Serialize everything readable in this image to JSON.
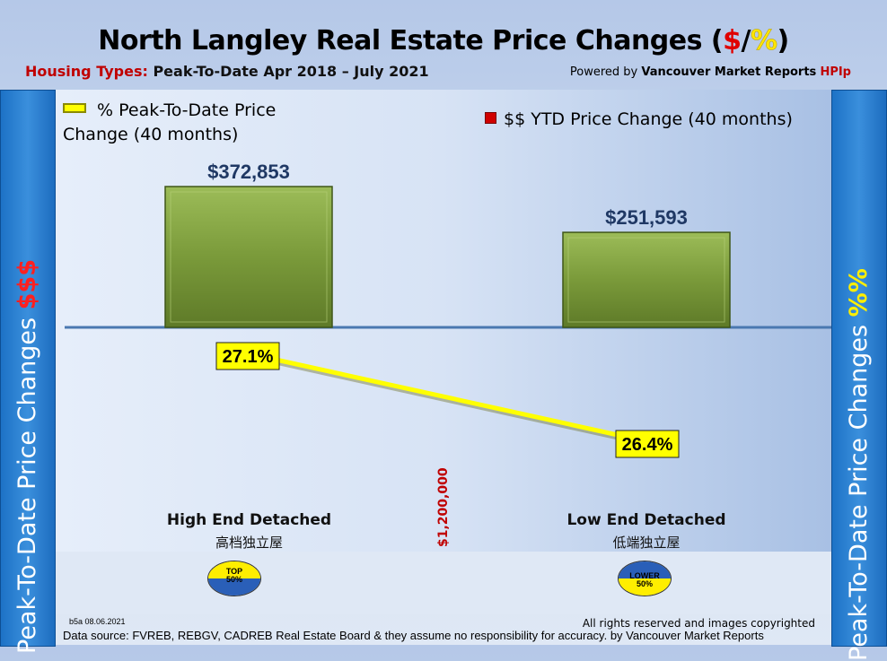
{
  "header": {
    "title_main": "North Langley Real Estate Price Changes (",
    "title_dollar": "$",
    "title_slash": "/",
    "title_pct": "%",
    "title_close": ")",
    "housing_types_label": "Housing Types:",
    "period": "Peak-To-Date Apr 2018 – July 2021",
    "powered_by": "Powered by",
    "vmr": "Vancouver Market Reports",
    "hpi": "HPIp"
  },
  "side": {
    "left_text": "Peak-To-Date Price Changes",
    "left_accent": "$$$",
    "right_text": "Peak-To-Date  Price  Changes",
    "right_accent": "%%"
  },
  "legend": {
    "pct_line1": "% Peak-To-Date Price",
    "pct_line2": "Change (40 months)",
    "dollar": "$$ YTD Price Change (40 months)"
  },
  "chart_data": {
    "type": "bar",
    "categories": [
      "High End Detached",
      "Low End Detached"
    ],
    "categories_chinese": [
      "高档独立屋",
      "低端独立屋"
    ],
    "series": [
      {
        "name": "$$ YTD Price Change (40 months)",
        "values": [
          372853,
          251593
        ],
        "labels": [
          "$372,853",
          "$251,593"
        ],
        "color": "#7a9a3a"
      },
      {
        "name": "% Peak-To-Date Price Change (40 months)",
        "type": "line",
        "values": [
          27.1,
          26.4
        ],
        "labels": [
          "27.1%",
          "26.4%"
        ],
        "color": "#ffff00"
      }
    ],
    "divider_label": "$1,200,000"
  },
  "badges": [
    {
      "line1": "TOP",
      "line2": "50%"
    },
    {
      "line1": "LOWER",
      "line2": "50%"
    }
  ],
  "footer": {
    "code": "b5a 08.06.2021",
    "rights": "All rights reserved and  images copyrighted",
    "source": "Data source: FVREB, REBGV, CADREB Real Estate Board & they assume no responsibility for accuracy. by Vancouver Market Reports"
  },
  "colors": {
    "side_blue": "#2a80d2",
    "accent_red": "#c00000",
    "bar_green": "#7a9a3a",
    "line_yellow": "#ffff00"
  }
}
